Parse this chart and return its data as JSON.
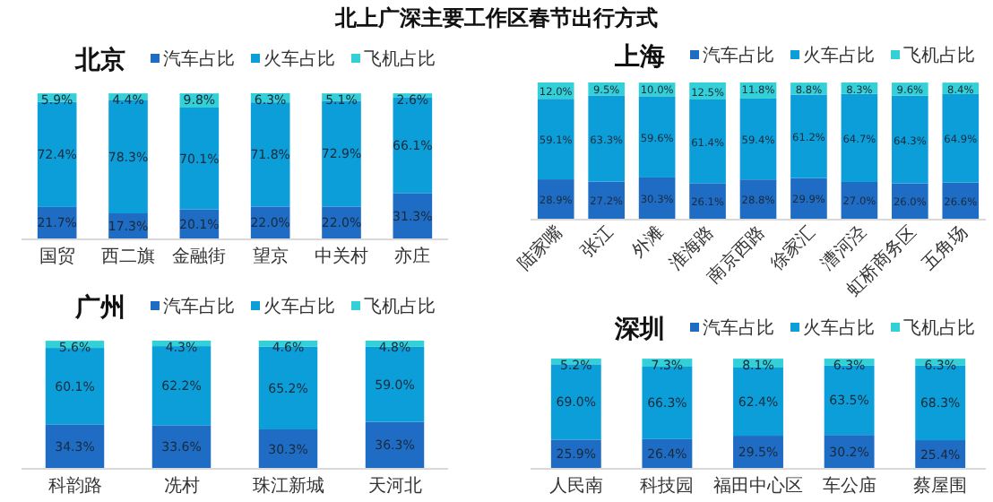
{
  "chart_data": [
    {
      "type": "bar",
      "title": "北京",
      "stacked": true,
      "legend": "top",
      "annotations": [
        "北上广深主要工作区春节出行方式"
      ],
      "categories": [
        "国贸",
        "西二旗",
        "金融街",
        "望京",
        "中关村",
        "亦庄"
      ],
      "series": [
        {
          "name": "汽车占比",
          "color": "#1f6cc4",
          "values": [
            21.7,
            17.3,
            20.1,
            22.0,
            22.0,
            31.3
          ],
          "value_labels": [
            "21.7%",
            "17.3%",
            "20.1%",
            "22.0%",
            "22.0%",
            "31.3%"
          ]
        },
        {
          "name": "火车占比",
          "color": "#0b9ed9",
          "values": [
            72.4,
            78.3,
            70.1,
            71.8,
            72.9,
            66.1
          ],
          "value_labels": [
            "72.4%",
            "78.3%",
            "70.1%",
            "71.8%",
            "72.9%",
            "66.1%"
          ]
        },
        {
          "name": "飞机占比",
          "color": "#34d0d8",
          "values": [
            5.9,
            4.4,
            9.8,
            6.3,
            5.1,
            2.6
          ],
          "value_labels": [
            "5.9%",
            "4.4%",
            "9.8%",
            "6.3%",
            "5.1%",
            "2.6%"
          ]
        }
      ]
    },
    {
      "type": "bar",
      "title": "上海",
      "stacked": true,
      "legend": "top",
      "categories": [
        "陆家嘴",
        "张江",
        "外滩",
        "淮海路",
        "南京西路",
        "徐家汇",
        "漕河泾",
        "虹桥商务区",
        "五角场"
      ],
      "series": [
        {
          "name": "汽车占比",
          "color": "#1f6cc4",
          "values": [
            28.9,
            27.2,
            30.3,
            26.1,
            28.8,
            29.9,
            27.0,
            26.0,
            26.6
          ],
          "value_labels": [
            "28.9%",
            "27.2%",
            "30.3%",
            "26.1%",
            "28.8%",
            "29.9%",
            "27.0%",
            "26.0%",
            "26.6%"
          ]
        },
        {
          "name": "火车占比",
          "color": "#0b9ed9",
          "values": [
            59.1,
            63.3,
            59.6,
            61.4,
            59.4,
            61.2,
            64.7,
            64.3,
            64.9
          ],
          "value_labels": [
            "59.1%",
            "63.3%",
            "59.6%",
            "61.4%",
            "59.4%",
            "61.2%",
            "64.7%",
            "64.3%",
            "64.9%"
          ]
        },
        {
          "name": "飞机占比",
          "color": "#34d0d8",
          "values": [
            12.0,
            9.5,
            10.0,
            12.5,
            11.8,
            8.8,
            8.3,
            9.6,
            8.4
          ],
          "value_labels": [
            "12.0%",
            "9.5%",
            "10.0%",
            "12.5%",
            "11.8%",
            "8.8%",
            "8.3%",
            "9.6%",
            "8.4%"
          ]
        }
      ]
    },
    {
      "type": "bar",
      "title": "广州",
      "stacked": true,
      "legend": "top",
      "categories": [
        "科韵路",
        "冼村",
        "珠江新城",
        "天河北"
      ],
      "series": [
        {
          "name": "汽车占比",
          "color": "#1f6cc4",
          "values": [
            34.3,
            33.6,
            30.3,
            36.3
          ],
          "value_labels": [
            "34.3%",
            "33.6%",
            "30.3%",
            "36.3%"
          ]
        },
        {
          "name": "火车占比",
          "color": "#0b9ed9",
          "values": [
            60.1,
            62.2,
            65.2,
            59.0
          ],
          "value_labels": [
            "60.1%",
            "62.2%",
            "65.2%",
            "59.0%"
          ]
        },
        {
          "name": "飞机占比",
          "color": "#34d0d8",
          "values": [
            5.6,
            4.3,
            4.6,
            4.8
          ],
          "value_labels": [
            "5.6%",
            "4.3%",
            "4.6%",
            "4.8%"
          ]
        }
      ]
    },
    {
      "type": "bar",
      "title": "深圳",
      "stacked": true,
      "legend": "top",
      "categories": [
        "人民南",
        "科技园",
        "福田中心区",
        "车公庙",
        "蔡屋围"
      ],
      "series": [
        {
          "name": "汽车占比",
          "color": "#1f6cc4",
          "values": [
            25.9,
            26.4,
            29.5,
            30.2,
            25.4
          ],
          "value_labels": [
            "25.9%",
            "26.4%",
            "29.5%",
            "30.2%",
            "25.4%"
          ]
        },
        {
          "name": "火车占比",
          "color": "#0b9ed9",
          "values": [
            69.0,
            66.3,
            62.4,
            63.5,
            68.3
          ],
          "value_labels": [
            "69.0%",
            "66.3%",
            "62.4%",
            "63.5%",
            "68.3%"
          ]
        },
        {
          "name": "飞机占比",
          "color": "#34d0d8",
          "values": [
            5.2,
            7.3,
            8.1,
            6.3,
            6.3
          ],
          "value_labels": [
            "5.2%",
            "7.3%",
            "8.1%",
            "6.3%",
            "6.3%"
          ]
        }
      ]
    }
  ]
}
